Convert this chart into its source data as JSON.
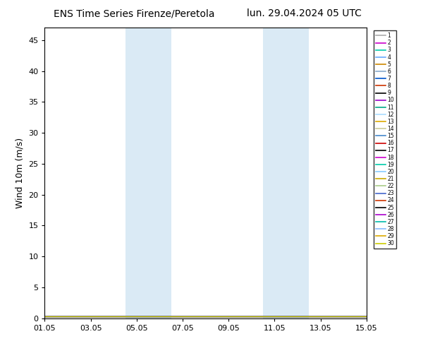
{
  "title_left": "ENS Time Series Firenze/Peretola",
  "title_right": "lun. 29.04.2024 05 UTC",
  "ylabel": "Wind 10m (m/s)",
  "ylim": [
    0,
    47
  ],
  "yticks": [
    0,
    5,
    10,
    15,
    20,
    25,
    30,
    35,
    40,
    45
  ],
  "xlim": [
    0,
    14
  ],
  "xtick_labels": [
    "01.05",
    "03.05",
    "05.05",
    "07.05",
    "09.05",
    "11.05",
    "13.05",
    "15.05"
  ],
  "xtick_positions": [
    0,
    2,
    4,
    6,
    8,
    10,
    12,
    14
  ],
  "shaded_bands": [
    {
      "start": 3.5,
      "end": 4.5
    },
    {
      "start": 4.5,
      "end": 5.5
    },
    {
      "start": 9.5,
      "end": 10.5
    },
    {
      "start": 10.5,
      "end": 11.5
    }
  ],
  "shade_color": "#daeaf5",
  "n_members": 30,
  "member_colors": [
    "#aaaaaa",
    "#cc00cc",
    "#00ccaa",
    "#66aaff",
    "#cc8800",
    "#88aacc",
    "#0055cc",
    "#cc3300",
    "#000000",
    "#9900cc",
    "#00aa88",
    "#aaddff",
    "#ddaa00",
    "#cccc99",
    "#4488cc",
    "#cc0000",
    "#000000",
    "#cc00cc",
    "#00ccaa",
    "#88ccff",
    "#ccaa00",
    "#aacc88",
    "#4466cc",
    "#cc3300",
    "#000000",
    "#aa00cc",
    "#00bbaa",
    "#88bbff",
    "#ddaa00",
    "#cccc00"
  ],
  "line_value": 0.3,
  "background_color": "#ffffff",
  "title_fontsize": 10,
  "axis_fontsize": 8,
  "ylabel_fontsize": 9
}
